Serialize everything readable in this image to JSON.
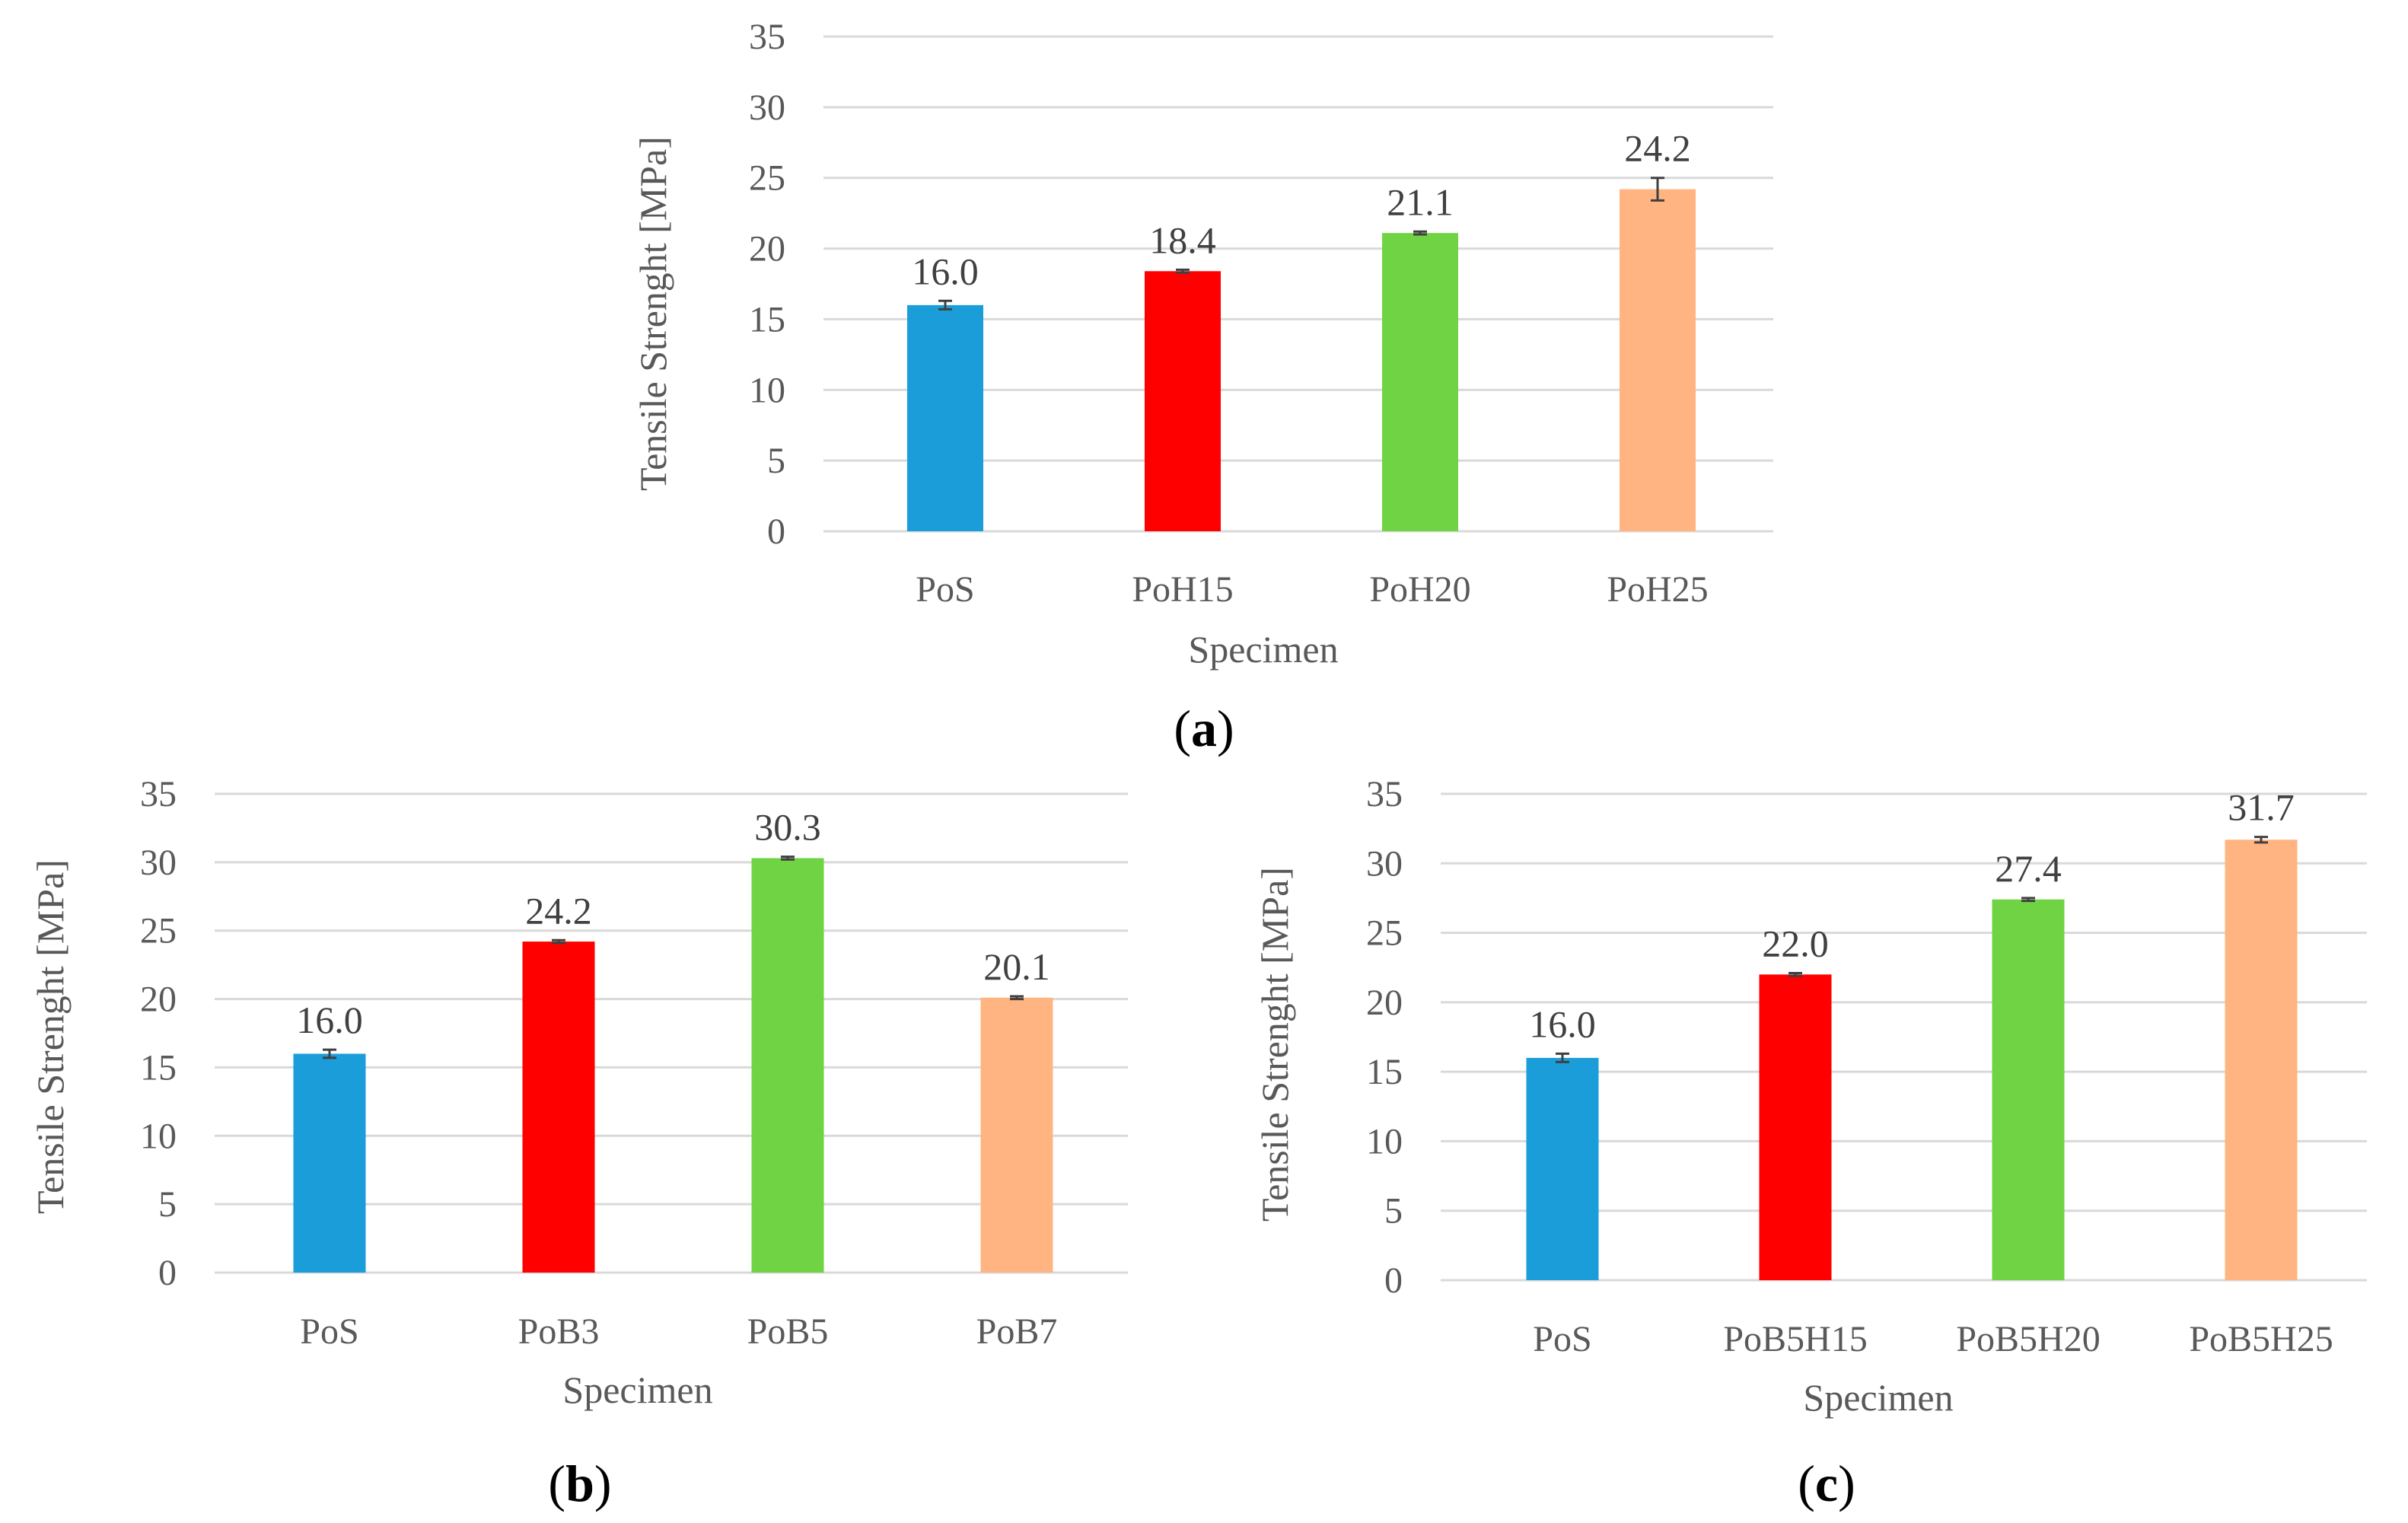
{
  "chart_data": [
    {
      "panel": "a",
      "type": "bar",
      "categories": [
        "PoS",
        "PoH15",
        "PoH20",
        "PoH25"
      ],
      "values": [
        16.0,
        18.4,
        21.1,
        24.2
      ],
      "data_labels": [
        "16.0",
        "18.4",
        "21.1",
        "24.2"
      ],
      "errors": [
        0.3,
        0.1,
        0.1,
        0.8
      ],
      "colors": [
        "#1b9dd9",
        "#ff0000",
        "#6fd344",
        "#ffb482"
      ],
      "xlabel": "Specimen",
      "ylabel": "Tensile Strenght [MPa]",
      "ylim": [
        0,
        35
      ],
      "yticks": [
        "0",
        "5",
        "10",
        "15",
        "20",
        "25",
        "30",
        "35"
      ],
      "grid": true,
      "panel_label": {
        "open": "(",
        "letter": "a",
        "close": ")"
      }
    },
    {
      "panel": "b",
      "type": "bar",
      "categories": [
        "PoS",
        "PoB3",
        "PoB5",
        "PoB7"
      ],
      "values": [
        16.0,
        24.2,
        30.3,
        20.1
      ],
      "data_labels": [
        "16.0",
        "24.2",
        "30.3",
        "20.1"
      ],
      "errors": [
        0.3,
        0.1,
        0.1,
        0.1
      ],
      "colors": [
        "#1b9dd9",
        "#ff0000",
        "#6fd344",
        "#ffb482"
      ],
      "xlabel": "Specimen",
      "ylabel": "Tensile Strenght [MPa]",
      "ylim": [
        0,
        35
      ],
      "yticks": [
        "0",
        "5",
        "10",
        "15",
        "20",
        "25",
        "30",
        "35"
      ],
      "grid": true,
      "panel_label": {
        "open": "(",
        "letter": "b",
        "close": ")"
      }
    },
    {
      "panel": "c",
      "type": "bar",
      "categories": [
        "PoS",
        "PoB5H15",
        "PoB5H20",
        "PoB5H25"
      ],
      "values": [
        16.0,
        22.0,
        27.4,
        31.7
      ],
      "data_labels": [
        "16.0",
        "22.0",
        "27.4",
        "31.7"
      ],
      "errors": [
        0.3,
        0.1,
        0.1,
        0.2
      ],
      "colors": [
        "#1b9dd9",
        "#ff0000",
        "#6fd344",
        "#ffb482"
      ],
      "xlabel": "Specimen",
      "ylabel": "Tensile Strenght [MPa]",
      "ylim": [
        0,
        35
      ],
      "yticks": [
        "0",
        "5",
        "10",
        "15",
        "20",
        "25",
        "30",
        "35"
      ],
      "grid": true,
      "panel_label": {
        "open": "(",
        "letter": "c",
        "close": ")"
      }
    }
  ]
}
